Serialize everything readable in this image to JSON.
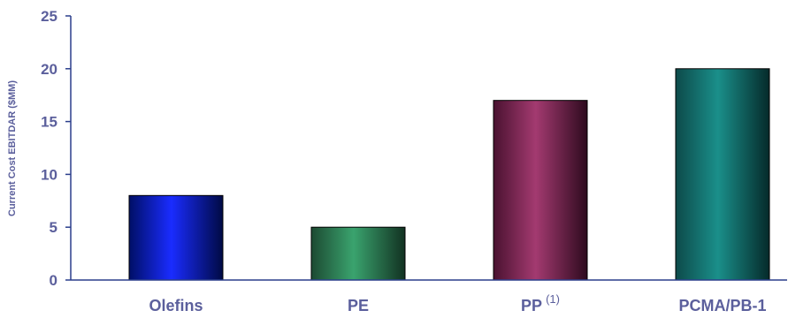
{
  "chart_data": {
    "type": "bar",
    "categories": [
      "Olefins",
      "PE",
      "PP",
      "PCMA/PB-1"
    ],
    "category_footnotes": [
      "",
      "",
      "(1)",
      ""
    ],
    "values": [
      8,
      5,
      17,
      20
    ],
    "title": "",
    "xlabel": "",
    "ylabel": "Current Cost EBITDAR ($MM)",
    "ylim": [
      0,
      25
    ],
    "yticks": [
      0,
      5,
      10,
      15,
      20,
      25
    ],
    "grid": false,
    "legend": "none",
    "colors": {
      "axis": "#2b3f8c",
      "text": "#5b5f9c",
      "bars": [
        [
          "#000f66",
          "#1a2cff",
          "#000a44"
        ],
        [
          "#1c4a32",
          "#3aa36e",
          "#123222"
        ],
        [
          "#4a1230",
          "#a33a70",
          "#2e0a1e"
        ],
        [
          "#0d4a4a",
          "#1a8f8a",
          "#052a2a"
        ]
      ]
    }
  }
}
